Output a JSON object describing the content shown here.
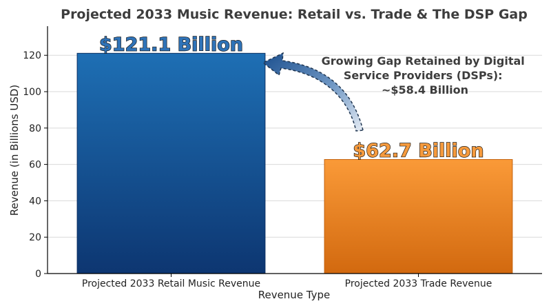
{
  "chart_data": {
    "type": "bar",
    "title": "Projected 2033 Music Revenue: Retail vs. Trade & The DSP Gap",
    "xlabel": "Revenue Type",
    "ylabel": "Revenue (in Billions USD)",
    "categories": [
      "Projected 2033 Retail Music Revenue",
      "Projected 2033 Trade Revenue"
    ],
    "values": [
      121.1,
      62.7
    ],
    "data_labels": [
      "$121.1 Billion",
      "$62.7 Billion"
    ],
    "yticks": [
      "0",
      "20",
      "40",
      "60",
      "80",
      "100",
      "120"
    ],
    "ylim": [
      0,
      136
    ],
    "grid": "horizontal",
    "colors": [
      "#1a5fa3",
      "#f5912e"
    ],
    "label_colors": [
      "#2f73b8",
      "#f59a3d"
    ],
    "annotation": {
      "lines": [
        "Growing Gap Retained by Digital",
        "Service Providers (DSPs):",
        "~$58.4 Billion"
      ]
    }
  }
}
